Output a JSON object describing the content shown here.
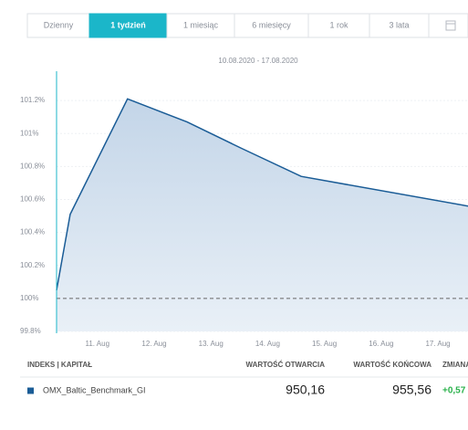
{
  "tabs": [
    "Dzienny",
    "1 tydzień",
    "1 miesiąc",
    "6 miesięcy",
    "1 rok",
    "3 lata"
  ],
  "active_tab": 1,
  "chart_data": {
    "type": "area",
    "subtitle": "10.08.2020 - 17.08.2020",
    "x": [
      10.28,
      10.52,
      11.53,
      12.58,
      13.54,
      14.59,
      17.53
    ],
    "series": [
      {
        "name": "OMX_Baltic_Benchmark_GI",
        "color": "#1a5c96",
        "values": [
          100.05,
          100.51,
          101.21,
          101.07,
          100.91,
          100.74,
          100.56
        ]
      }
    ],
    "xlim": [
      10.28,
      17.53
    ],
    "xticks": [
      {
        "value": 11,
        "label": "11. Aug"
      },
      {
        "value": 12,
        "label": "12. Aug"
      },
      {
        "value": 13,
        "label": "13. Aug"
      },
      {
        "value": 14,
        "label": "14. Aug"
      },
      {
        "value": 15,
        "label": "15. Aug"
      },
      {
        "value": 16,
        "label": "16. Aug"
      },
      {
        "value": 17,
        "label": "17. Aug"
      }
    ],
    "ylim": [
      99.8,
      101.4
    ],
    "yticks": [
      {
        "value": 99.8,
        "label": "99.8%"
      },
      {
        "value": 100,
        "label": "100%"
      },
      {
        "value": 100.2,
        "label": "100.2%"
      },
      {
        "value": 100.4,
        "label": "100.4%"
      },
      {
        "value": 100.6,
        "label": "100.6%"
      },
      {
        "value": 100.8,
        "label": "100.8%"
      },
      {
        "value": 101,
        "label": "101%"
      },
      {
        "value": 101.2,
        "label": "101.2%"
      }
    ],
    "baseline": 100,
    "grid": true
  },
  "table": {
    "headers": [
      "INDEKS | KAPITAŁ",
      "WARTOŚĆ OTWARCIA",
      "WARTOŚĆ KOŃCOWA",
      "ZMIANA %"
    ],
    "rows": [
      [
        "OMX_Baltic_Benchmark_GI",
        "950,16",
        "955,56",
        "+0,57"
      ]
    ]
  }
}
